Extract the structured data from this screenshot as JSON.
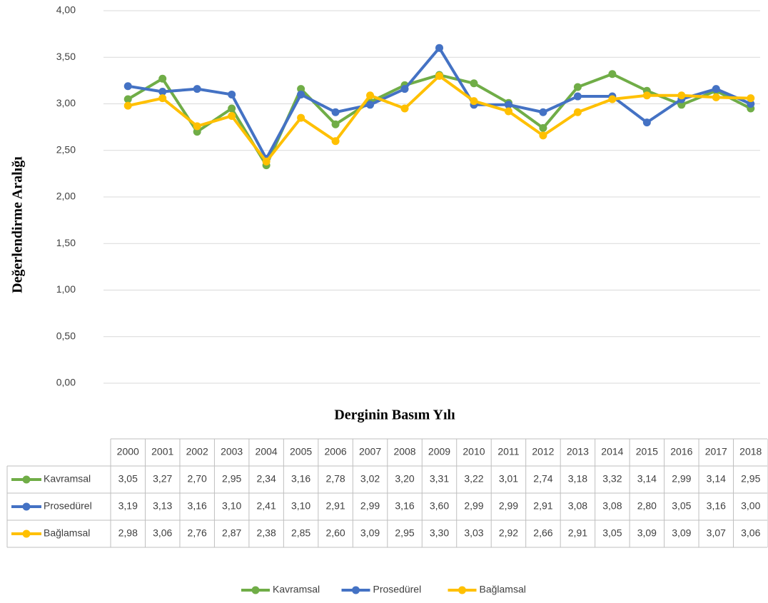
{
  "chart_data": {
    "type": "line",
    "x_label": "Derginin Basım Yılı",
    "y_label": "Değerlendirme Aralığı",
    "categories": [
      "2000",
      "2001",
      "2002",
      "2003",
      "2004",
      "2005",
      "2006",
      "2007",
      "2008",
      "2009",
      "2010",
      "2011",
      "2012",
      "2013",
      "2014",
      "2015",
      "2016",
      "2017",
      "2018"
    ],
    "series": [
      {
        "name": "Kavramsal",
        "color": "#70ad47",
        "values": [
          3.05,
          3.27,
          2.7,
          2.95,
          2.34,
          3.16,
          2.78,
          3.02,
          3.2,
          3.31,
          3.22,
          3.01,
          2.74,
          3.18,
          3.32,
          3.14,
          2.99,
          3.14,
          2.95
        ],
        "value_labels": [
          "3,05",
          "3,27",
          "2,70",
          "2,95",
          "2,34",
          "3,16",
          "2,78",
          "3,02",
          "3,20",
          "3,31",
          "3,22",
          "3,01",
          "2,74",
          "3,18",
          "3,32",
          "3,14",
          "2,99",
          "3,14",
          "2,95"
        ]
      },
      {
        "name": "Prosedürel",
        "color": "#4472c4",
        "values": [
          3.19,
          3.13,
          3.16,
          3.1,
          2.41,
          3.1,
          2.91,
          2.99,
          3.16,
          3.6,
          2.99,
          2.99,
          2.91,
          3.08,
          3.08,
          2.8,
          3.05,
          3.16,
          3.0
        ],
        "value_labels": [
          "3,19",
          "3,13",
          "3,16",
          "3,10",
          "2,41",
          "3,10",
          "2,91",
          "2,99",
          "3,16",
          "3,60",
          "2,99",
          "2,99",
          "2,91",
          "3,08",
          "3,08",
          "2,80",
          "3,05",
          "3,16",
          "3,00"
        ]
      },
      {
        "name": "Bağlamsal",
        "color": "#ffc000",
        "values": [
          2.98,
          3.06,
          2.76,
          2.87,
          2.38,
          2.85,
          2.6,
          3.09,
          2.95,
          3.3,
          3.03,
          2.92,
          2.66,
          2.91,
          3.05,
          3.09,
          3.09,
          3.07,
          3.06
        ],
        "value_labels": [
          "2,98",
          "3,06",
          "2,76",
          "2,87",
          "2,38",
          "2,85",
          "2,60",
          "3,09",
          "2,95",
          "3,30",
          "3,03",
          "2,92",
          "2,66",
          "2,91",
          "3,05",
          "3,09",
          "3,09",
          "3,07",
          "3,06"
        ]
      }
    ],
    "ylim": [
      0,
      4
    ],
    "yticks": [
      {
        "value": 0,
        "label": "0,00"
      },
      {
        "value": 0.5,
        "label": "0,50"
      },
      {
        "value": 1,
        "label": "1,00"
      },
      {
        "value": 1.5,
        "label": "1,50"
      },
      {
        "value": 2,
        "label": "2,00"
      },
      {
        "value": 2.5,
        "label": "2,50"
      },
      {
        "value": 3,
        "label": "3,00"
      },
      {
        "value": 3.5,
        "label": "3,50"
      },
      {
        "value": 4,
        "label": "4,00"
      }
    ],
    "grid": true,
    "legend": "bottom"
  }
}
